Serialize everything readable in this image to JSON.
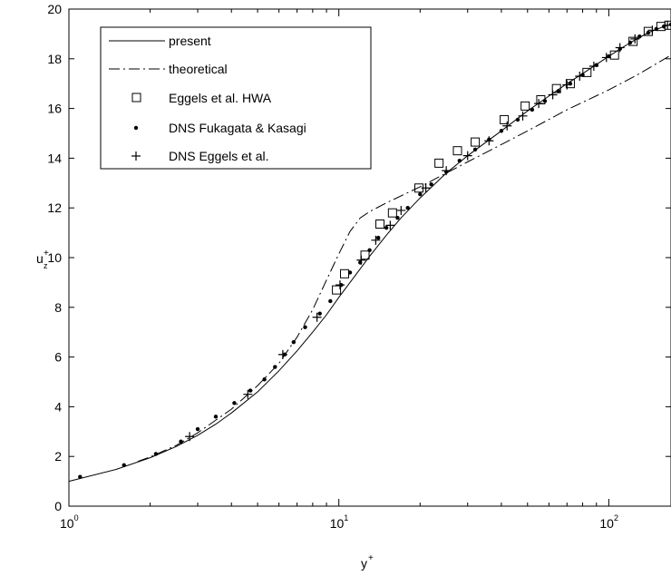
{
  "chart_data": {
    "type": "line",
    "x_scale": "log",
    "xlim": [
      1,
      170
    ],
    "ylim": [
      0,
      20
    ],
    "xlabel": "y",
    "xlabel_sup": "+",
    "ylabel": "u",
    "ylabel_sup": "+",
    "ylabel_sub": "z",
    "yticks": [
      0,
      2,
      4,
      6,
      8,
      10,
      12,
      14,
      16,
      18,
      20
    ],
    "xticks": [
      {
        "value": 1,
        "base": "10",
        "exp": "0"
      },
      {
        "value": 10,
        "base": "10",
        "exp": "1"
      },
      {
        "value": 100,
        "base": "10",
        "exp": "2"
      }
    ],
    "grid": false,
    "legend_position": "top-left",
    "series": [
      {
        "name": "present",
        "style": "solid",
        "color": "#000000",
        "points": [
          [
            1,
            1.0
          ],
          [
            1.5,
            1.48
          ],
          [
            2,
            1.95
          ],
          [
            2.5,
            2.4
          ],
          [
            3,
            2.85
          ],
          [
            3.5,
            3.3
          ],
          [
            4,
            3.75
          ],
          [
            5,
            4.6
          ],
          [
            6,
            5.45
          ],
          [
            7,
            6.25
          ],
          [
            8,
            7.0
          ],
          [
            9,
            7.7
          ],
          [
            10,
            8.4
          ],
          [
            11,
            9.0
          ],
          [
            12,
            9.55
          ],
          [
            13,
            10.05
          ],
          [
            15,
            10.9
          ],
          [
            17,
            11.6
          ],
          [
            20,
            12.4
          ],
          [
            25,
            13.4
          ],
          [
            30,
            14.1
          ],
          [
            40,
            15.1
          ],
          [
            50,
            15.9
          ],
          [
            60,
            16.5
          ],
          [
            70,
            17.0
          ],
          [
            80,
            17.4
          ],
          [
            100,
            18.1
          ],
          [
            120,
            18.65
          ],
          [
            140,
            19.05
          ],
          [
            160,
            19.3
          ],
          [
            170,
            19.38
          ]
        ]
      },
      {
        "name": "theoretical",
        "style": "dashdot",
        "color": "#000000",
        "points": [
          [
            1.8,
            1.8
          ],
          [
            2,
            1.98
          ],
          [
            2.5,
            2.45
          ],
          [
            3,
            2.95
          ],
          [
            4,
            3.9
          ],
          [
            5,
            4.85
          ],
          [
            6,
            5.75
          ],
          [
            7,
            6.8
          ],
          [
            8,
            7.9
          ],
          [
            9,
            9.1
          ],
          [
            10,
            10.15
          ],
          [
            11,
            11.05
          ],
          [
            12,
            11.6
          ],
          [
            13,
            11.85
          ],
          [
            15,
            12.2
          ],
          [
            20,
            12.85
          ],
          [
            30,
            13.85
          ],
          [
            40,
            14.55
          ],
          [
            50,
            15.1
          ],
          [
            70,
            15.95
          ],
          [
            100,
            16.75
          ],
          [
            130,
            17.4
          ],
          [
            170,
            18.15
          ]
        ]
      },
      {
        "name": "Eggels et al. HWA",
        "style": "square",
        "color": "#000000",
        "points": [
          [
            9.8,
            8.7
          ],
          [
            10.5,
            9.35
          ],
          [
            12.5,
            10.1
          ],
          [
            14.2,
            11.35
          ],
          [
            15.8,
            11.8
          ],
          [
            19.8,
            12.8
          ],
          [
            23.5,
            13.8
          ],
          [
            27.5,
            14.3
          ],
          [
            32,
            14.65
          ],
          [
            41,
            15.55
          ],
          [
            49,
            16.1
          ],
          [
            56,
            16.35
          ],
          [
            64,
            16.8
          ],
          [
            72,
            17.0
          ],
          [
            83,
            17.45
          ],
          [
            105,
            18.15
          ],
          [
            123,
            18.7
          ],
          [
            140,
            19.1
          ],
          [
            156,
            19.3
          ],
          [
            167,
            19.35
          ]
        ]
      },
      {
        "name": "DNS Fukagata & Kasagi",
        "style": "dot",
        "color": "#000000",
        "points": [
          [
            1.1,
            1.18
          ],
          [
            1.6,
            1.65
          ],
          [
            2.1,
            2.1
          ],
          [
            2.6,
            2.6
          ],
          [
            3.0,
            3.1
          ],
          [
            3.5,
            3.6
          ],
          [
            4.1,
            4.15
          ],
          [
            4.7,
            4.65
          ],
          [
            5.3,
            5.1
          ],
          [
            5.8,
            5.6
          ],
          [
            6.3,
            6.1
          ],
          [
            6.8,
            6.6
          ],
          [
            7.5,
            7.2
          ],
          [
            8.5,
            7.75
          ],
          [
            9.3,
            8.25
          ],
          [
            10.2,
            8.9
          ],
          [
            11,
            9.4
          ],
          [
            12,
            9.8
          ],
          [
            13,
            10.3
          ],
          [
            14,
            10.8
          ],
          [
            15,
            11.2
          ],
          [
            16.5,
            11.6
          ],
          [
            18,
            12.0
          ],
          [
            20,
            12.55
          ],
          [
            22,
            12.95
          ],
          [
            25,
            13.45
          ],
          [
            28,
            13.9
          ],
          [
            32,
            14.35
          ],
          [
            36,
            14.75
          ],
          [
            40,
            15.1
          ],
          [
            46,
            15.55
          ],
          [
            52,
            15.95
          ],
          [
            58,
            16.3
          ],
          [
            65,
            16.7
          ],
          [
            72,
            17.0
          ],
          [
            80,
            17.35
          ],
          [
            90,
            17.75
          ],
          [
            100,
            18.1
          ],
          [
            110,
            18.4
          ],
          [
            120,
            18.65
          ],
          [
            130,
            18.9
          ],
          [
            140,
            19.05
          ],
          [
            150,
            19.2
          ],
          [
            160,
            19.3
          ],
          [
            170,
            19.38
          ]
        ]
      },
      {
        "name": "DNS Eggels et al.",
        "style": "plus",
        "color": "#000000",
        "points": [
          [
            2.8,
            2.8
          ],
          [
            4.6,
            4.5
          ],
          [
            6.2,
            6.1
          ],
          [
            8.3,
            7.6
          ],
          [
            10.1,
            8.9
          ],
          [
            12.1,
            9.9
          ],
          [
            13.7,
            10.7
          ],
          [
            15.5,
            11.3
          ],
          [
            17,
            11.9
          ],
          [
            21,
            12.8
          ],
          [
            25,
            13.5
          ],
          [
            30,
            14.1
          ],
          [
            36,
            14.7
          ],
          [
            42,
            15.3
          ],
          [
            48,
            15.7
          ],
          [
            55,
            16.2
          ],
          [
            62,
            16.55
          ],
          [
            70,
            16.95
          ],
          [
            78,
            17.3
          ],
          [
            88,
            17.7
          ],
          [
            98,
            18.05
          ],
          [
            110,
            18.45
          ],
          [
            125,
            18.8
          ],
          [
            145,
            19.15
          ],
          [
            165,
            19.35
          ]
        ]
      }
    ]
  }
}
